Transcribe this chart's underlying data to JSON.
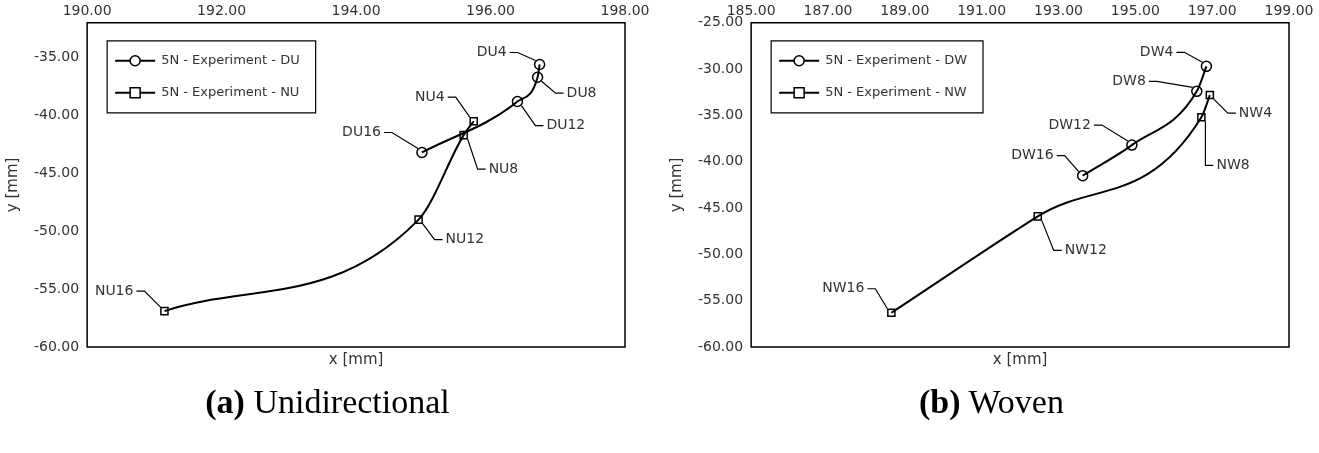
{
  "chart_data": [
    {
      "type": "line",
      "title": "(a) Unidirectional",
      "xlabel": "x [mm]",
      "ylabel": "y [mm]",
      "xlim": [
        190,
        198
      ],
      "xticks": [
        {
          "value": 190,
          "label": "190.00"
        },
        {
          "value": 192,
          "label": "192.00"
        },
        {
          "value": 194,
          "label": "194.00"
        },
        {
          "value": 196,
          "label": "196.00"
        },
        {
          "value": 198,
          "label": "198.00"
        }
      ],
      "ylim": [
        -60,
        -32
      ],
      "yticks": [
        {
          "value": -60,
          "label": "-60.00"
        },
        {
          "value": -55,
          "label": "-55.00"
        },
        {
          "value": -50,
          "label": "-50.00"
        },
        {
          "value": -45,
          "label": "-45.00"
        },
        {
          "value": -40,
          "label": "-40.00"
        },
        {
          "value": -35,
          "label": "-35.00"
        }
      ],
      "grid": false,
      "legend": "top left",
      "series": [
        {
          "name": "5N - Experiment - DU",
          "color": "#000000",
          "marker": "circle",
          "x": [
            196.73,
            196.7,
            196.4,
            194.98
          ],
          "values": [
            -35.6,
            -36.7,
            -38.8,
            -43.2
          ]
        },
        {
          "name": "5N - Experiment - NU",
          "color": "#000000",
          "marker": "square",
          "x": [
            195.75,
            195.6,
            194.93,
            191.15
          ],
          "values": [
            -40.5,
            -41.7,
            -49,
            -56.9
          ]
        }
      ],
      "annotations": [
        {
          "text": "DU4",
          "x": 196.73,
          "y": -35.6
        },
        {
          "text": "DU8",
          "x": 196.7,
          "y": -36.7
        },
        {
          "text": "DU12",
          "x": 196.4,
          "y": -38.8
        },
        {
          "text": "DU16",
          "x": 194.98,
          "y": -43.2
        },
        {
          "text": "NU4",
          "x": 195.75,
          "y": -40.5
        },
        {
          "text": "NU8",
          "x": 195.6,
          "y": -41.7
        },
        {
          "text": "NU12",
          "x": 194.93,
          "y": -49
        },
        {
          "text": "NU16",
          "x": 191.15,
          "y": -56.9
        }
      ]
    },
    {
      "type": "line",
      "title": "(b) Woven",
      "xlabel": "x [mm]",
      "ylabel": "y [mm]",
      "xlim": [
        185,
        199
      ],
      "xticks": [
        {
          "value": 185,
          "label": "185.00"
        },
        {
          "value": 187,
          "label": "187.00"
        },
        {
          "value": 189,
          "label": "189.00"
        },
        {
          "value": 191,
          "label": "191.00"
        },
        {
          "value": 193,
          "label": "193.00"
        },
        {
          "value": 195,
          "label": "195.00"
        },
        {
          "value": 197,
          "label": "197.00"
        },
        {
          "value": 199,
          "label": "199.00"
        }
      ],
      "ylim": [
        -60,
        -25
      ],
      "yticks": [
        {
          "value": -60,
          "label": "-60.00"
        },
        {
          "value": -55,
          "label": "-55.00"
        },
        {
          "value": -50,
          "label": "-50.00"
        },
        {
          "value": -45,
          "label": "-45.00"
        },
        {
          "value": -40,
          "label": "-40.00"
        },
        {
          "value": -35,
          "label": "-35.00"
        },
        {
          "value": -30,
          "label": "-30.00"
        },
        {
          "value": -25,
          "label": "-25.00"
        }
      ],
      "grid": false,
      "legend": "top left",
      "series": [
        {
          "name": "5N - Experiment - DW",
          "color": "#000000",
          "marker": "circle",
          "x": [
            196.85,
            196.6,
            194.91,
            193.63
          ],
          "values": [
            -29.7,
            -32.4,
            -38.2,
            -41.5
          ]
        },
        {
          "name": "5N - Experiment - NW",
          "color": "#000000",
          "marker": "square",
          "x": [
            196.94,
            196.72,
            192.46,
            188.65
          ],
          "values": [
            -32.8,
            -35.2,
            -45.9,
            -56.3
          ]
        }
      ],
      "annotations": [
        {
          "text": "DW4",
          "x": 196.85,
          "y": -29.7
        },
        {
          "text": "DW8",
          "x": 196.6,
          "y": -32.4
        },
        {
          "text": "DW12",
          "x": 194.91,
          "y": -38.2
        },
        {
          "text": "DW16",
          "x": 193.63,
          "y": -41.5
        },
        {
          "text": "NW4",
          "x": 196.94,
          "y": -32.8
        },
        {
          "text": "NW8",
          "x": 196.72,
          "y": -35.2
        },
        {
          "text": "NW12",
          "x": 192.46,
          "y": -45.9
        },
        {
          "text": "NW16",
          "x": 188.65,
          "y": -56.3
        }
      ]
    }
  ]
}
